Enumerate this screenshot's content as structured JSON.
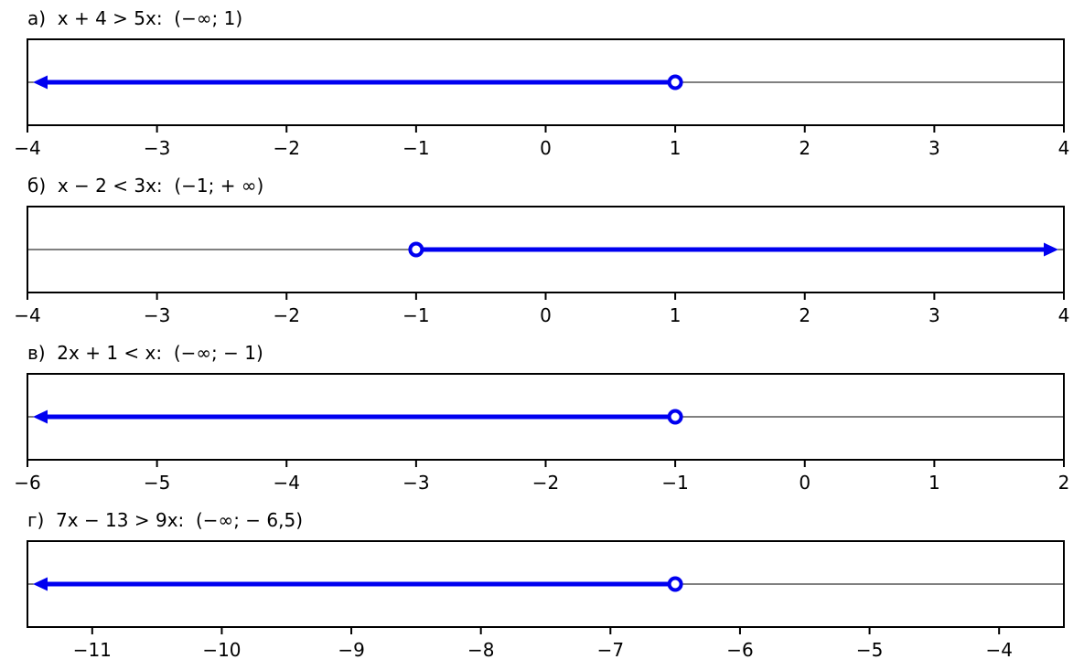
{
  "figure": {
    "background": "#ffffff",
    "axis_color": "#000000",
    "ray_color": "#0000f0",
    "tick_font_size": 20,
    "title_font_size": 20
  },
  "chart_data": [
    {
      "type": "number_line",
      "panel_label": "а",
      "inequality": "x + 4 > 5x",
      "solution_interval": "(−∞; 1)",
      "title": "а)  x + 4 > 5x:  (−∞; 1)",
      "xlim": [
        -4,
        4
      ],
      "ticks": [
        -4,
        -3,
        -2,
        -1,
        0,
        1,
        2,
        3,
        4
      ],
      "tick_labels": [
        "−4",
        "−3",
        "−2",
        "−1",
        "0",
        "1",
        "2",
        "3",
        "4"
      ],
      "open_point": 1,
      "ray_direction": "left"
    },
    {
      "type": "number_line",
      "panel_label": "б",
      "inequality": "x − 2 < 3x",
      "solution_interval": "(−1; + ∞)",
      "title": "б)  x − 2 < 3x:  (−1; + ∞)",
      "xlim": [
        -4,
        4
      ],
      "ticks": [
        -4,
        -3,
        -2,
        -1,
        0,
        1,
        2,
        3,
        4
      ],
      "tick_labels": [
        "−4",
        "−3",
        "−2",
        "−1",
        "0",
        "1",
        "2",
        "3",
        "4"
      ],
      "open_point": -1,
      "ray_direction": "right"
    },
    {
      "type": "number_line",
      "panel_label": "в",
      "inequality": "2x + 1 < x",
      "solution_interval": "(−∞; − 1)",
      "title": "в)  2x + 1 < x:  (−∞; − 1)",
      "xlim": [
        -6,
        2
      ],
      "ticks": [
        -6,
        -5,
        -4,
        -3,
        -2,
        -1,
        0,
        1,
        2
      ],
      "tick_labels": [
        "−6",
        "−5",
        "−4",
        "−3",
        "−2",
        "−1",
        "0",
        "1",
        "2"
      ],
      "open_point": -1,
      "ray_direction": "left"
    },
    {
      "type": "number_line",
      "panel_label": "г",
      "inequality": "7x − 13 > 9x",
      "solution_interval": "(−∞; − 6,5)",
      "title": "г)  7x − 13 > 9x:  (−∞; − 6,5)",
      "xlim": [
        -11.5,
        -3.5
      ],
      "ticks": [
        -11,
        -10,
        -9,
        -8,
        -7,
        -6,
        -5,
        -4
      ],
      "tick_labels": [
        "−11",
        "−10",
        "−9",
        "−8",
        "−7",
        "−6",
        "−5",
        "−4"
      ],
      "open_point": -6.5,
      "ray_direction": "left"
    }
  ]
}
